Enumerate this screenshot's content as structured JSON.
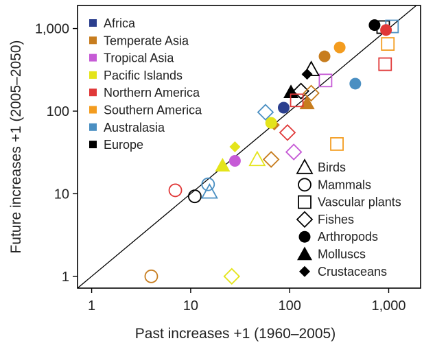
{
  "chart_data": {
    "type": "scatter",
    "xlabel": "Past increases +1 (1960–2005)",
    "ylabel": "Future increases +1 (2005–2050)",
    "xscale": "log",
    "yscale": "log",
    "xlim": [
      0.72,
      2100
    ],
    "ylim": [
      0.72,
      1900
    ],
    "x_ticks": [
      {
        "value": 1,
        "label": "1"
      },
      {
        "value": 10,
        "label": "10"
      },
      {
        "value": 100,
        "label": "100"
      },
      {
        "value": 1000,
        "label": "1,000"
      }
    ],
    "y_ticks": [
      {
        "value": 1,
        "label": "1"
      },
      {
        "value": 10,
        "label": "10"
      },
      {
        "value": 100,
        "label": "100"
      },
      {
        "value": 1000,
        "label": "1,000"
      }
    ],
    "reference_line": "1:1",
    "regions": [
      {
        "id": "africa",
        "name": "Africa",
        "color": "#2b3f8e"
      },
      {
        "id": "temperate_asia",
        "name": "Temperate Asia",
        "color": "#c77d1f"
      },
      {
        "id": "tropical_asia",
        "name": "Tropical Asia",
        "color": "#c65bd6"
      },
      {
        "id": "pacific_islands",
        "name": "Pacific Islands",
        "color": "#e4e41a"
      },
      {
        "id": "northern_america",
        "name": "Northern America",
        "color": "#e03838"
      },
      {
        "id": "southern_america",
        "name": "Southern America",
        "color": "#f39c1f"
      },
      {
        "id": "australasia",
        "name": "Australasia",
        "color": "#4a8fc2"
      },
      {
        "id": "europe",
        "name": "Europe",
        "color": "#000000"
      }
    ],
    "taxa": [
      {
        "id": "birds",
        "name": "Birds",
        "shape": "triangle",
        "filled": false
      },
      {
        "id": "mammals",
        "name": "Mammals",
        "shape": "circle",
        "filled": false
      },
      {
        "id": "vascular_plants",
        "name": "Vascular plants",
        "shape": "square",
        "filled": false
      },
      {
        "id": "fishes",
        "name": "Fishes",
        "shape": "diamond",
        "filled": false
      },
      {
        "id": "arthropods",
        "name": "Arthropods",
        "shape": "circle",
        "filled": true
      },
      {
        "id": "molluscs",
        "name": "Molluscs",
        "shape": "triangle",
        "filled": true
      },
      {
        "id": "crustaceans",
        "name": "Crustaceans",
        "shape": "diamond",
        "filled": true,
        "small": true
      }
    ],
    "points": [
      {
        "region": "europe",
        "taxon": "arthropods",
        "x": 720,
        "y": 1100
      },
      {
        "region": "europe",
        "taxon": "vascular_plants",
        "x": 880,
        "y": 1040
      },
      {
        "region": "australasia",
        "taxon": "vascular_plants",
        "x": 1080,
        "y": 1060
      },
      {
        "region": "northern_america",
        "taxon": "arthropods",
        "x": 940,
        "y": 960
      },
      {
        "region": "northern_america",
        "taxon": "vascular_plants",
        "x": 920,
        "y": 370
      },
      {
        "region": "southern_america",
        "taxon": "vascular_plants",
        "x": 980,
        "y": 650
      },
      {
        "region": "southern_america",
        "taxon": "arthropods",
        "x": 320,
        "y": 590
      },
      {
        "region": "temperate_asia",
        "taxon": "arthropods",
        "x": 225,
        "y": 460
      },
      {
        "region": "australasia",
        "taxon": "arthropods",
        "x": 460,
        "y": 215
      },
      {
        "region": "tropical_asia",
        "taxon": "vascular_plants",
        "x": 230,
        "y": 235
      },
      {
        "region": "europe",
        "taxon": "birds",
        "x": 165,
        "y": 320
      },
      {
        "region": "europe",
        "taxon": "crustaceans",
        "x": 150,
        "y": 280
      },
      {
        "region": "europe",
        "taxon": "fishes",
        "x": 130,
        "y": 175
      },
      {
        "region": "temperate_asia",
        "taxon": "fishes",
        "x": 165,
        "y": 165
      },
      {
        "region": "europe",
        "taxon": "molluscs",
        "x": 103,
        "y": 170
      },
      {
        "region": "temperate_asia",
        "taxon": "molluscs",
        "x": 150,
        "y": 125
      },
      {
        "region": "northern_america",
        "taxon": "vascular_plants",
        "x": 118,
        "y": 135
      },
      {
        "region": "africa",
        "taxon": "arthropods",
        "x": 87,
        "y": 110
      },
      {
        "region": "australasia",
        "taxon": "fishes",
        "x": 57,
        "y": 97
      },
      {
        "region": "temperate_asia",
        "taxon": "crustaceans",
        "x": 70,
        "y": 68
      },
      {
        "region": "pacific_islands",
        "taxon": "arthropods",
        "x": 65,
        "y": 72
      },
      {
        "region": "northern_america",
        "taxon": "fishes",
        "x": 95,
        "y": 55
      },
      {
        "region": "tropical_asia",
        "taxon": "fishes",
        "x": 110,
        "y": 32
      },
      {
        "region": "southern_america",
        "taxon": "vascular_plants",
        "x": 300,
        "y": 40
      },
      {
        "region": "pacific_islands",
        "taxon": "crustaceans",
        "x": 28,
        "y": 37
      },
      {
        "region": "tropical_asia",
        "taxon": "arthropods",
        "x": 28,
        "y": 25
      },
      {
        "region": "pacific_islands",
        "taxon": "molluscs",
        "x": 21,
        "y": 22
      },
      {
        "region": "pacific_islands",
        "taxon": "birds",
        "x": 47,
        "y": 26
      },
      {
        "region": "temperate_asia",
        "taxon": "fishes",
        "x": 65,
        "y": 26
      },
      {
        "region": "northern_america",
        "taxon": "mammals",
        "x": 7,
        "y": 11
      },
      {
        "region": "australasia",
        "taxon": "mammals",
        "x": 15,
        "y": 13
      },
      {
        "region": "australasia",
        "taxon": "birds",
        "x": 15.5,
        "y": 10.5
      },
      {
        "region": "europe",
        "taxon": "mammals",
        "x": 11,
        "y": 9.3
      },
      {
        "region": "temperate_asia",
        "taxon": "mammals",
        "x": 4,
        "y": 1
      },
      {
        "region": "pacific_islands",
        "taxon": "fishes",
        "x": 26,
        "y": 1
      }
    ]
  }
}
